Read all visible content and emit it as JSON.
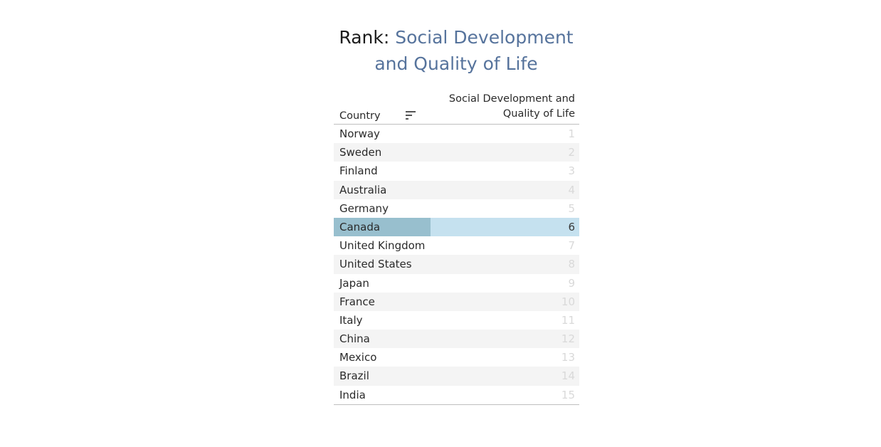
{
  "title": {
    "prefix": "Rank: ",
    "metric_line1": "Social Development",
    "metric_line2": "and Quality of Life",
    "accent_color": "#56739c"
  },
  "table": {
    "columns": {
      "country": "Country",
      "metric_line1": "Social Development and",
      "metric_line2": "Quality of Life"
    },
    "sort_icon": "sort-descending-icon",
    "selected_country": "Canada",
    "selected_color": "#c5e1ef",
    "selected_cell_color": "#98bfce",
    "rows": [
      {
        "country": "Norway",
        "rank": "1"
      },
      {
        "country": "Sweden",
        "rank": "2"
      },
      {
        "country": "Finland",
        "rank": "3"
      },
      {
        "country": "Australia",
        "rank": "4"
      },
      {
        "country": "Germany",
        "rank": "5"
      },
      {
        "country": "Canada",
        "rank": "6"
      },
      {
        "country": "United Kingdom",
        "rank": "7"
      },
      {
        "country": "United States",
        "rank": "8"
      },
      {
        "country": "Japan",
        "rank": "9"
      },
      {
        "country": "France",
        "rank": "10"
      },
      {
        "country": "Italy",
        "rank": "11"
      },
      {
        "country": "China",
        "rank": "12"
      },
      {
        "country": "Mexico",
        "rank": "13"
      },
      {
        "country": "Brazil",
        "rank": "14"
      },
      {
        "country": "India",
        "rank": "15"
      }
    ]
  }
}
